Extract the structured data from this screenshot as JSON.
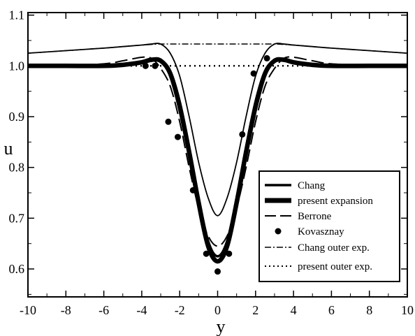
{
  "chart_data": {
    "type": "line",
    "xlabel": "y",
    "ylabel": "u",
    "xlim": [
      -10,
      10
    ],
    "ylim": [
      0.545,
      1.105
    ],
    "xticks": [
      "-10",
      "-8",
      "-6",
      "-4",
      "-2",
      "0",
      "2",
      "4",
      "6",
      "8",
      "10"
    ],
    "yticks": [
      "0.6",
      "0.7",
      "0.8",
      "0.9",
      "1.0",
      "1.1"
    ],
    "legend_position": "bottom-right",
    "series": [
      {
        "name": "Chang",
        "style": "thick-solid",
        "x": [
          -10,
          -8,
          -6,
          -5,
          -4,
          -3.5,
          -3,
          -2.5,
          -2,
          -1.5,
          -1,
          -0.5,
          0,
          0.5,
          1,
          1.5,
          2,
          2.5,
          3,
          3.5,
          4,
          5,
          6,
          8,
          10
        ],
        "y": [
          1.0,
          1.0,
          1.0,
          1.002,
          1.007,
          1.01,
          1.01,
          0.99,
          0.93,
          0.84,
          0.74,
          0.655,
          0.625,
          0.655,
          0.74,
          0.84,
          0.93,
          0.99,
          1.01,
          1.01,
          1.007,
          1.002,
          1.0,
          1.0,
          1.0
        ]
      },
      {
        "name": "present expansion",
        "style": "extra-thick-solid",
        "x": [
          -10,
          -8,
          -6,
          -5,
          -4,
          -3.5,
          -3,
          -2.5,
          -2,
          -1.5,
          -1,
          -0.5,
          0,
          0.5,
          1,
          1.5,
          2,
          2.5,
          3,
          3.5,
          4,
          5,
          6,
          8,
          10
        ],
        "y": [
          1.0,
          1.0,
          1.0,
          1.002,
          1.007,
          1.012,
          1.01,
          0.985,
          0.92,
          0.83,
          0.73,
          0.645,
          0.615,
          0.645,
          0.73,
          0.83,
          0.92,
          0.985,
          1.01,
          1.012,
          1.007,
          1.002,
          1.0,
          1.0,
          1.0
        ]
      },
      {
        "name": "Berrone",
        "style": "long-dash",
        "x": [
          -10,
          -8,
          -6,
          -5,
          -4,
          -3.5,
          -3,
          -2.5,
          -2,
          -1.5,
          -1,
          -0.5,
          0,
          0.5,
          1,
          1.5,
          2,
          2.5,
          3,
          3.5,
          4,
          5,
          6,
          8,
          10
        ],
        "y": [
          1.0,
          1.001,
          1.004,
          1.01,
          1.017,
          1.015,
          0.995,
          0.96,
          0.89,
          0.8,
          0.72,
          0.665,
          0.645,
          0.665,
          0.72,
          0.8,
          0.89,
          0.96,
          0.995,
          1.015,
          1.017,
          1.01,
          1.004,
          1.001,
          1.0
        ]
      },
      {
        "name": "Kovasznay",
        "style": "markers",
        "x": [
          -3.8,
          -3.3,
          -2.6,
          -2.1,
          -1.3,
          -0.6,
          0,
          0.6,
          1.3,
          1.9,
          2.6
        ],
        "y": [
          1.0,
          1.0,
          0.89,
          0.86,
          0.755,
          0.63,
          0.595,
          0.63,
          0.865,
          0.985,
          1.015
        ]
      },
      {
        "name": "",
        "style": "thin-solid",
        "x": [
          -10,
          -8,
          -6,
          -5,
          -4,
          -3.5,
          -3,
          -2.5,
          -2,
          -1.5,
          -1,
          -0.5,
          0,
          0.5,
          1,
          1.5,
          2,
          2.5,
          3,
          3.5,
          4,
          5,
          6,
          8,
          10
        ],
        "y": [
          1.025,
          1.03,
          1.035,
          1.038,
          1.041,
          1.043,
          1.043,
          1.025,
          0.98,
          0.9,
          0.81,
          0.74,
          0.705,
          0.74,
          0.81,
          0.9,
          0.98,
          1.025,
          1.043,
          1.043,
          1.041,
          1.038,
          1.035,
          1.03,
          1.025
        ]
      },
      {
        "name": "Chang outer exp.",
        "style": "dash-dot",
        "x": [
          -10,
          -8,
          -6,
          -5,
          -4,
          -3,
          -2,
          -1,
          0,
          1,
          2,
          3,
          4,
          5,
          6,
          8,
          10
        ],
        "y": [
          1.025,
          1.03,
          1.035,
          1.038,
          1.041,
          1.043,
          1.043,
          1.043,
          1.043,
          1.043,
          1.043,
          1.043,
          1.041,
          1.038,
          1.035,
          1.03,
          1.025
        ]
      },
      {
        "name": "present outer exp.",
        "style": "dotted",
        "x": [
          -10,
          -5,
          0,
          5,
          10
        ],
        "y": [
          1.0,
          1.0,
          1.0,
          1.0,
          1.0
        ]
      }
    ]
  }
}
